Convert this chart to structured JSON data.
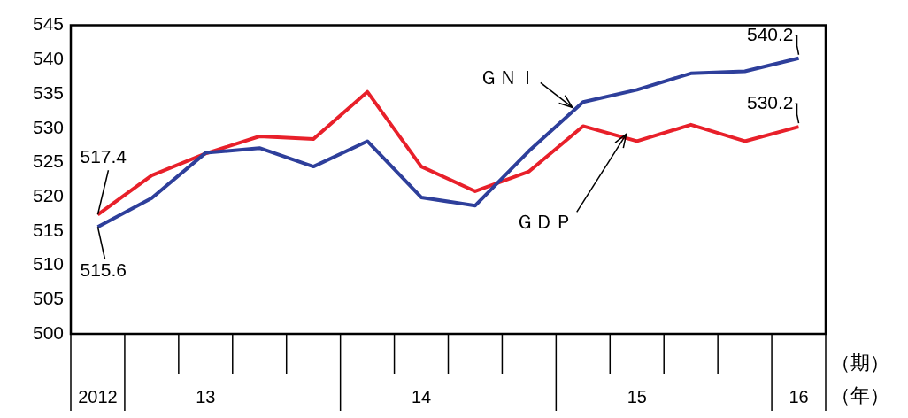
{
  "chart_data": {
    "type": "line",
    "categories": [
      "2012",
      null,
      "13",
      null,
      null,
      null,
      "14",
      null,
      null,
      null,
      "15",
      null,
      null,
      "16"
    ],
    "series": [
      {
        "name": "ＧＮＩ",
        "color": "#2e3f9b",
        "values": [
          515.6,
          519.8,
          526.4,
          527.1,
          524.4,
          528.1,
          519.9,
          518.7,
          526.7,
          533.8,
          535.6,
          538.0,
          538.3,
          540.2
        ],
        "value_labels": [
          "515.6",
          null,
          null,
          null,
          null,
          null,
          null,
          null,
          null,
          null,
          null,
          null,
          null,
          "540.2"
        ]
      },
      {
        "name": "ＧＤＰ",
        "color": "#e8202a",
        "values": [
          517.4,
          523.1,
          526.3,
          528.8,
          528.4,
          535.3,
          524.4,
          520.8,
          523.7,
          530.3,
          528.1,
          530.5,
          528.1,
          530.2
        ],
        "value_labels": [
          "517.4",
          null,
          null,
          null,
          null,
          null,
          null,
          null,
          null,
          null,
          null,
          null,
          null,
          "530.2"
        ]
      }
    ],
    "ylim": [
      500,
      545
    ],
    "yticks": [
      500,
      505,
      510,
      515,
      520,
      525,
      530,
      535,
      540,
      545
    ],
    "grid": false,
    "legend": false,
    "marker": "none",
    "line_style": "solid",
    "annotations": [
      "（期）",
      "（年）"
    ]
  }
}
